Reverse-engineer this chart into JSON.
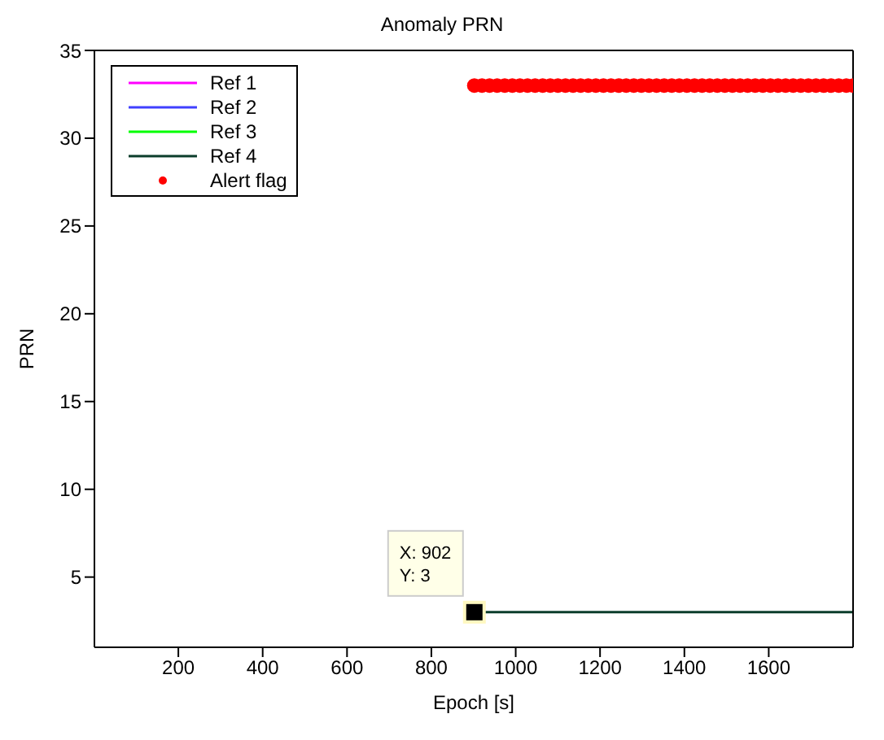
{
  "chart_data": {
    "type": "line",
    "title": "Anomaly PRN",
    "xlabel": "Epoch [s]",
    "ylabel": "PRN",
    "xlim": [
      1,
      1800
    ],
    "xticks": [
      200,
      400,
      600,
      800,
      1000,
      1200,
      1400,
      1600
    ],
    "ylim": [
      1,
      35
    ],
    "yticks": [
      5,
      10,
      15,
      20,
      25,
      30,
      35
    ],
    "grid": false,
    "legend": "top left",
    "line_style": "solid",
    "series": [
      {
        "name": "Ref 1",
        "color": "#ff00ff"
      },
      {
        "name": "Ref 2",
        "color": "#4040ff"
      },
      {
        "name": "Ref 3",
        "color": "#00ff00"
      },
      {
        "name": "Ref 4",
        "color": "#0b3d2b",
        "x": [
          902,
          1800
        ],
        "values": [
          3,
          3
        ]
      },
      {
        "name": "Alert flag",
        "color": "#ff0000",
        "type": "scatter",
        "marker": "circle",
        "x": [
          902,
          920,
          938,
          956,
          974,
          992,
          1010,
          1028,
          1046,
          1064,
          1082,
          1100,
          1118,
          1136,
          1154,
          1172,
          1190,
          1208,
          1226,
          1244,
          1262,
          1280,
          1298,
          1316,
          1334,
          1352,
          1370,
          1388,
          1406,
          1424,
          1442,
          1460,
          1478,
          1496,
          1514,
          1532,
          1550,
          1568,
          1586,
          1604,
          1622,
          1640,
          1658,
          1676,
          1694,
          1712,
          1730,
          1748,
          1766,
          1784,
          1800
        ],
        "values": [
          33,
          33,
          33,
          33,
          33,
          33,
          33,
          33,
          33,
          33,
          33,
          33,
          33,
          33,
          33,
          33,
          33,
          33,
          33,
          33,
          33,
          33,
          33,
          33,
          33,
          33,
          33,
          33,
          33,
          33,
          33,
          33,
          33,
          33,
          33,
          33,
          33,
          33,
          33,
          33,
          33,
          33,
          33,
          33,
          33,
          33,
          33,
          33,
          33,
          33,
          33
        ]
      }
    ],
    "annotations": [
      {
        "text": "X: 902\nY: 3",
        "x": 902,
        "y": 3
      }
    ]
  }
}
